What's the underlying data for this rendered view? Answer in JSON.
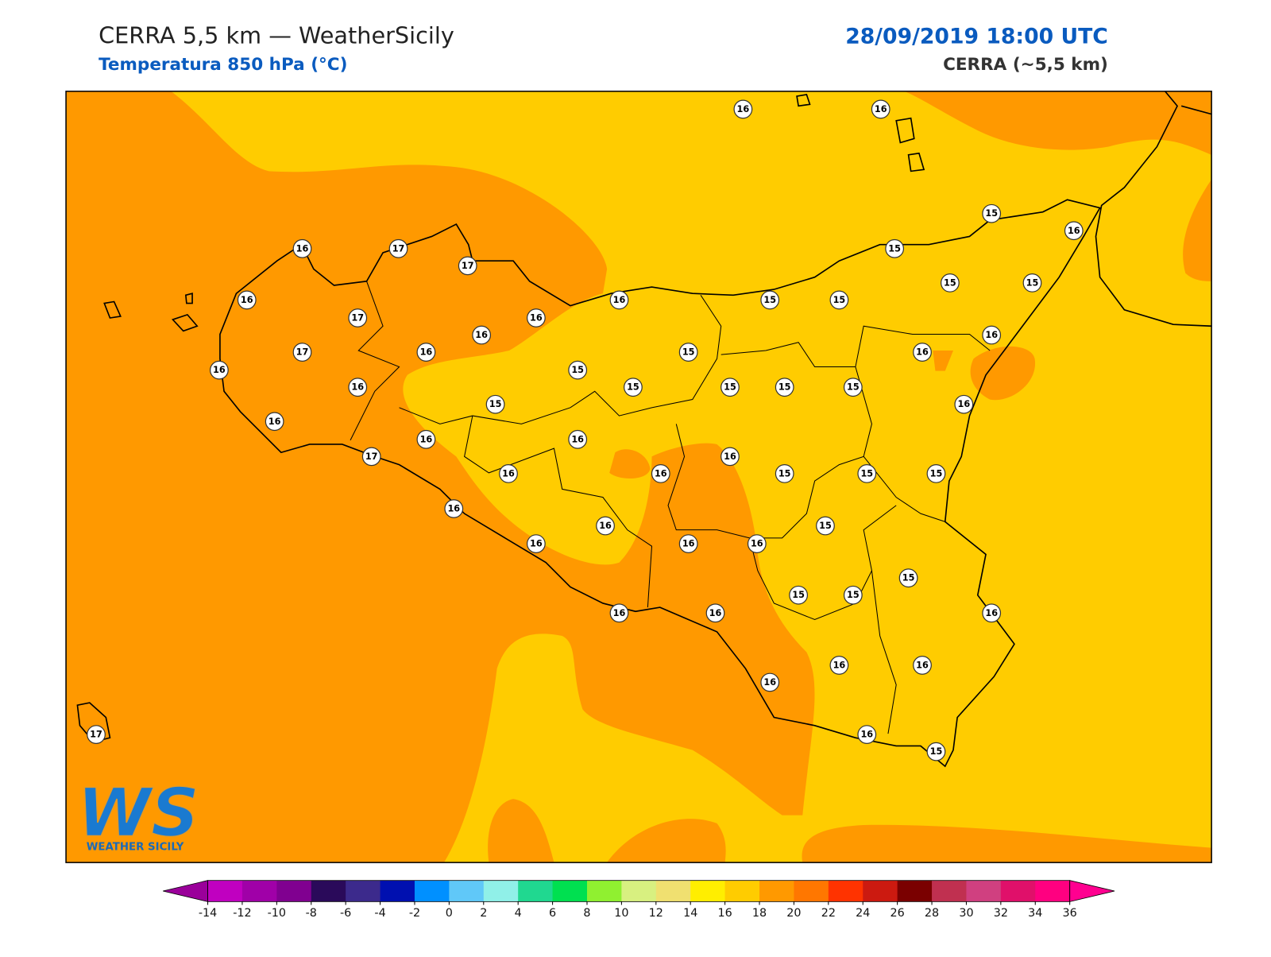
{
  "header": {
    "title": "CERRA 5,5 km — WeatherSicily",
    "subtitle": "Temperatura 850 hPa (°C)",
    "datetime": "28/09/2019 18:00 UTC",
    "model": "CERRA (~5,5 km)"
  },
  "logo": {
    "mark": "WS",
    "text": "WEATHER SICILY"
  },
  "stations": [
    16,
    16,
    15,
    16,
    16,
    17,
    17,
    15,
    15,
    15,
    16,
    16,
    15,
    15,
    17,
    16,
    16,
    16,
    17,
    16,
    15,
    16,
    16,
    15,
    15,
    15,
    15,
    15,
    16,
    15,
    16,
    16,
    16,
    16,
    16,
    17,
    16,
    16,
    15,
    15,
    15,
    16,
    15,
    16,
    16,
    16,
    16,
    15,
    15,
    15,
    16,
    16,
    16,
    16,
    16,
    16,
    16,
    15,
    17
  ],
  "colorbar": {
    "lim": [
      -14,
      36
    ],
    "ticks": [
      -14,
      -12,
      -10,
      -8,
      -6,
      -4,
      -2,
      0,
      2,
      4,
      6,
      8,
      10,
      12,
      14,
      16,
      18,
      20,
      22,
      24,
      26,
      28,
      30,
      32,
      34,
      36
    ],
    "colors": [
      "#c000c0",
      "#a000a8",
      "#800090",
      "#2a0a5a",
      "#3c2a8c",
      "#0010b0",
      "#0090ff",
      "#60c8f8",
      "#90f0e8",
      "#20d890",
      "#00e050",
      "#90f030",
      "#d8f080",
      "#f0e070",
      "#ffee00",
      "#ffcc00",
      "#ff9900",
      "#ff7700",
      "#ff3300",
      "#cc1a10",
      "#7a0000",
      "#c03050",
      "#d04080",
      "#e0106a",
      "#ff0080"
    ],
    "extend_colors": [
      "#9a009a",
      "#ff0090"
    ]
  }
}
